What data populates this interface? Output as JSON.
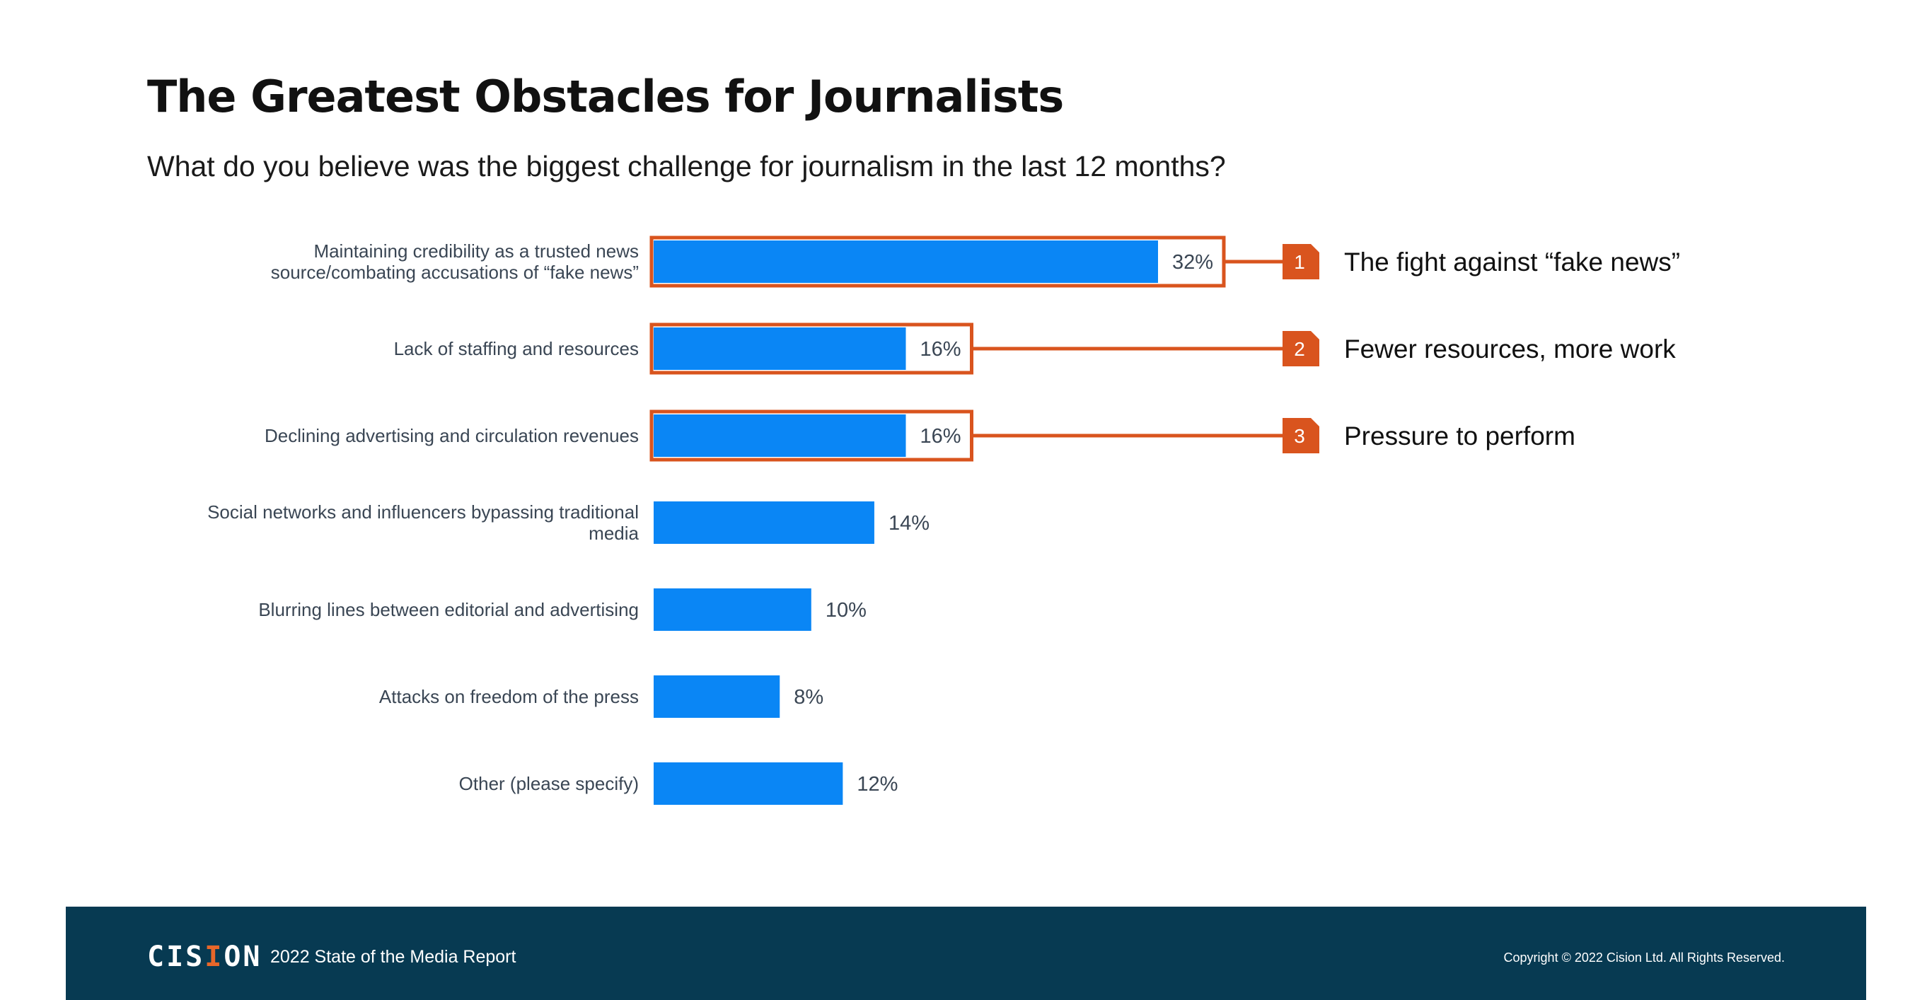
{
  "header": {
    "title": "The Greatest Obstacles for Journalists",
    "subtitle": "What do you believe was the biggest challenge for journalism in the last 12 months?"
  },
  "chart_data": {
    "type": "bar",
    "orientation": "horizontal",
    "categories": [
      [
        "Maintaining credibility as a trusted news",
        "source/combating accusations of “fake news”"
      ],
      [
        "Lack of staffing and resources"
      ],
      [
        "Declining advertising and circulation revenues"
      ],
      [
        "Social networks and influencers bypassing traditional",
        "media"
      ],
      [
        "Blurring lines between editorial and advertising"
      ],
      [
        "Attacks on freedom of the press"
      ],
      [
        "Other (please specify)"
      ]
    ],
    "values": [
      32,
      16,
      16,
      14,
      10,
      8,
      12
    ],
    "value_labels": [
      "32%",
      "16%",
      "16%",
      "14%",
      "10%",
      "8%",
      "12%"
    ],
    "xlim": [
      0,
      32
    ],
    "grid": false,
    "highlighted_indices": [
      0,
      1,
      2
    ],
    "bar_color": "#0a86f5",
    "highlight_color": "#d9541e",
    "callouts": [
      {
        "rank": "1",
        "text": "The fight against “fake news”",
        "bar_index": 0
      },
      {
        "rank": "2",
        "text": "Fewer resources, more work",
        "bar_index": 1
      },
      {
        "rank": "3",
        "text": "Pressure to perform",
        "bar_index": 2
      }
    ]
  },
  "footer": {
    "logo_text": "CISION",
    "report": "2022 State of the Media Report",
    "copyright": "Copyright © 2022 Cision Ltd. All Rights Reserved.",
    "background_color": "#073a52"
  }
}
